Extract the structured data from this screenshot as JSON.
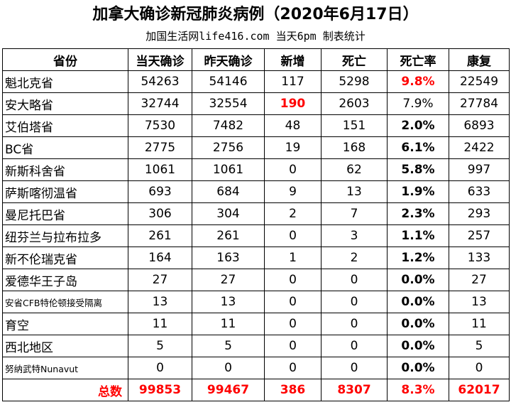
{
  "header": {
    "title": "加拿大确诊新冠肺炎病例（2020年6月17日）",
    "subtitle": "加国生活网life416.com 当天6pm 制表统计"
  },
  "table": {
    "columns": [
      "省份",
      "当天确诊",
      "昨天确诊",
      "新增",
      "死亡",
      "死亡率",
      "康复"
    ],
    "rows": [
      [
        "魁北克省",
        "54263",
        "54146",
        "117",
        "5298",
        "9.8%",
        "22549"
      ],
      [
        "安大略省",
        "32744",
        "32554",
        "190",
        "2603",
        "7.9%",
        "27784"
      ],
      [
        "艾伯塔省",
        "7530",
        "7482",
        "48",
        "151",
        "2.0%",
        "6893"
      ],
      [
        "BC省",
        "2775",
        "2756",
        "19",
        "168",
        "6.1%",
        "2422"
      ],
      [
        "新斯科舍省",
        "1061",
        "1061",
        "0",
        "62",
        "5.8%",
        "997"
      ],
      [
        "萨斯喀彻温省",
        "693",
        "684",
        "9",
        "13",
        "1.9%",
        "633"
      ],
      [
        "曼尼托巴省",
        "306",
        "304",
        "2",
        "7",
        "2.3%",
        "293"
      ],
      [
        "纽芬兰与拉布拉多",
        "261",
        "261",
        "0",
        "3",
        "1.1%",
        "257"
      ],
      [
        "新不伦瑞克省",
        "164",
        "163",
        "1",
        "2",
        "1.2%",
        "133"
      ],
      [
        "爱德华王子岛",
        "27",
        "27",
        "0",
        "0",
        "0.0%",
        "27"
      ],
      [
        "安省CFB特伦顿接受隔离",
        "13",
        "13",
        "0",
        "0",
        "0.0%",
        "13"
      ],
      [
        "育空",
        "11",
        "11",
        "0",
        "0",
        "0.0%",
        "11"
      ],
      [
        "西北地区",
        "5",
        "5",
        "0",
        "0",
        "0.0%",
        "5"
      ],
      [
        "努纳武特Nunavut",
        "0",
        "0",
        "0",
        "0",
        "0.0%",
        "0"
      ]
    ],
    "total": [
      "总数",
      "99853",
      "99467",
      "386",
      "8307",
      "8.3%",
      "62017"
    ]
  }
}
